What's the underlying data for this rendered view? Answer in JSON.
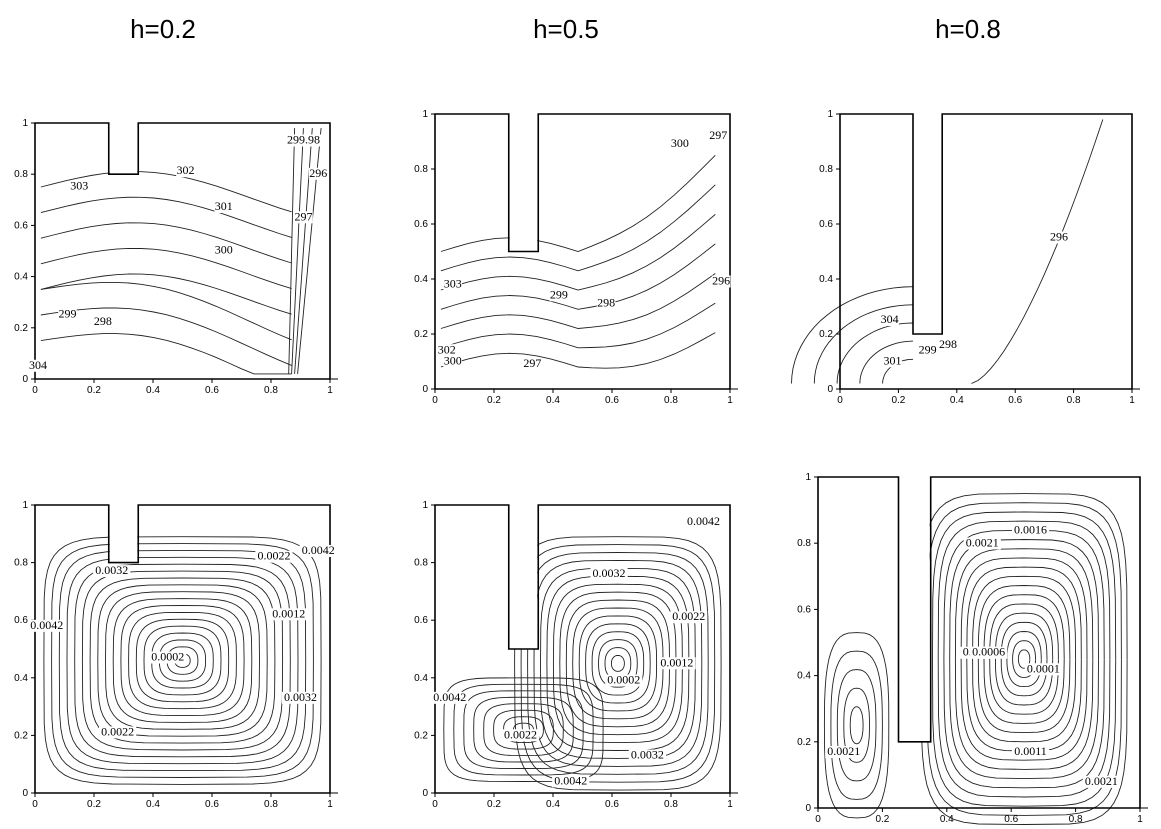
{
  "column_titles": [
    "h=0.2",
    "h=0.5",
    "h=0.8"
  ],
  "chart_data": [
    {
      "type": "contour",
      "row": "top",
      "h": 0.2,
      "xlim": [
        0,
        1
      ],
      "ylim": [
        0,
        1
      ],
      "xticks": [
        "0",
        "0.2",
        "0.4",
        "0.6",
        "0.8",
        "1"
      ],
      "yticks": [
        "0",
        "0.2",
        "0.4",
        "0.6",
        "0.8",
        "1"
      ],
      "contour_labels": [
        {
          "text": "303",
          "x": 0.15,
          "y": 0.74
        },
        {
          "text": "302",
          "x": 0.51,
          "y": 0.8
        },
        {
          "text": "301",
          "x": 0.64,
          "y": 0.66
        },
        {
          "text": "300",
          "x": 0.64,
          "y": 0.49
        },
        {
          "text": "299",
          "x": 0.11,
          "y": 0.24
        },
        {
          "text": "298",
          "x": 0.23,
          "y": 0.21
        },
        {
          "text": "297",
          "x": 0.91,
          "y": 0.62
        },
        {
          "text": "296",
          "x": 0.96,
          "y": 0.79
        },
        {
          "text": "299.98",
          "x": 0.91,
          "y": 0.92
        },
        {
          "text": "304",
          "x": 0.01,
          "y": 0.04
        }
      ]
    },
    {
      "type": "contour",
      "row": "top",
      "h": 0.5,
      "xlim": [
        0,
        1
      ],
      "ylim": [
        0,
        1
      ],
      "xticks": [
        "0",
        "0.2",
        "0.4",
        "0.6",
        "0.8",
        "1"
      ],
      "yticks": [
        "0",
        "0.2",
        "0.4",
        "0.6",
        "0.8",
        "1"
      ],
      "contour_labels": [
        {
          "text": "303",
          "x": 0.06,
          "y": 0.37
        },
        {
          "text": "302",
          "x": 0.04,
          "y": 0.13
        },
        {
          "text": "300",
          "x": 0.06,
          "y": 0.09
        },
        {
          "text": "299",
          "x": 0.42,
          "y": 0.33
        },
        {
          "text": "298",
          "x": 0.58,
          "y": 0.3
        },
        {
          "text": "297",
          "x": 0.33,
          "y": 0.08
        },
        {
          "text": "296",
          "x": 0.97,
          "y": 0.38
        },
        {
          "text": "300",
          "x": 0.83,
          "y": 0.88
        },
        {
          "text": "297",
          "x": 0.96,
          "y": 0.91
        }
      ]
    },
    {
      "type": "contour",
      "row": "top",
      "h": 0.8,
      "xlim": [
        0,
        1
      ],
      "ylim": [
        0,
        1
      ],
      "xticks": [
        "0",
        "0.2",
        "0.4",
        "0.6",
        "0.8",
        "1"
      ],
      "yticks": [
        "0",
        "0.2",
        "0.4",
        "0.6",
        "0.8",
        "1"
      ],
      "contour_labels": [
        {
          "text": "304",
          "x": 0.17,
          "y": 0.24
        },
        {
          "text": "301",
          "x": 0.18,
          "y": 0.09
        },
        {
          "text": "299",
          "x": 0.3,
          "y": 0.13
        },
        {
          "text": "298",
          "x": 0.37,
          "y": 0.15
        },
        {
          "text": "296",
          "x": 0.75,
          "y": 0.54
        }
      ]
    },
    {
      "type": "contour",
      "row": "bottom",
      "h": 0.2,
      "xlim": [
        0,
        1
      ],
      "ylim": [
        0,
        1
      ],
      "xticks": [
        "0",
        "0.2",
        "0.4",
        "0.6",
        "0.8",
        "1"
      ],
      "yticks": [
        "0",
        "0.2",
        "0.4",
        "0.6",
        "0.8",
        "1"
      ],
      "contour_labels": [
        {
          "text": "0.0032",
          "x": 0.26,
          "y": 0.76
        },
        {
          "text": "0.0042",
          "x": 0.04,
          "y": 0.57
        },
        {
          "text": "0.0002",
          "x": 0.45,
          "y": 0.46
        },
        {
          "text": "0.0022",
          "x": 0.28,
          "y": 0.2
        },
        {
          "text": "0.0022",
          "x": 0.81,
          "y": 0.81
        },
        {
          "text": "0.0012",
          "x": 0.86,
          "y": 0.61
        },
        {
          "text": "0.0042",
          "x": 0.96,
          "y": 0.83
        },
        {
          "text": "0.0032",
          "x": 0.9,
          "y": 0.32
        }
      ]
    },
    {
      "type": "contour",
      "row": "bottom",
      "h": 0.5,
      "xlim": [
        0,
        1
      ],
      "ylim": [
        0,
        1
      ],
      "xticks": [
        "0",
        "0.2",
        "0.4",
        "0.6",
        "0.8",
        "1"
      ],
      "yticks": [
        "0",
        "0.2",
        "0.4",
        "0.6",
        "0.8",
        "1"
      ],
      "contour_labels": [
        {
          "text": "0.0032",
          "x": 0.59,
          "y": 0.75
        },
        {
          "text": "0.0042",
          "x": 0.91,
          "y": 0.93
        },
        {
          "text": "0.0022",
          "x": 0.86,
          "y": 0.6
        },
        {
          "text": "0.0012",
          "x": 0.82,
          "y": 0.44
        },
        {
          "text": "0.0002",
          "x": 0.64,
          "y": 0.38
        },
        {
          "text": "0.0042",
          "x": 0.05,
          "y": 0.32
        },
        {
          "text": "0.0022",
          "x": 0.29,
          "y": 0.19
        },
        {
          "text": "0.0032",
          "x": 0.72,
          "y": 0.12
        },
        {
          "text": "0.0042",
          "x": 0.46,
          "y": 0.03
        }
      ]
    },
    {
      "type": "contour",
      "row": "bottom",
      "h": 0.8,
      "xlim": [
        0,
        1
      ],
      "ylim": [
        0,
        1
      ],
      "xticks": [
        "0",
        "0.2",
        "0.4",
        "0.6",
        "0.8",
        "1"
      ],
      "yticks": [
        "0",
        "0.2",
        "0.4",
        "0.6",
        "0.8",
        "1"
      ],
      "contour_labels": [
        {
          "text": "0.0021",
          "x": 0.51,
          "y": 0.79
        },
        {
          "text": "0.0016",
          "x": 0.66,
          "y": 0.83
        },
        {
          "text": "0.0011",
          "x": 0.5,
          "y": 0.46
        },
        {
          "text": "0.0006",
          "x": 0.53,
          "y": 0.46
        },
        {
          "text": "0.0001",
          "x": 0.7,
          "y": 0.41
        },
        {
          "text": "0.0021",
          "x": 0.08,
          "y": 0.16
        },
        {
          "text": "0.0011",
          "x": 0.66,
          "y": 0.16
        },
        {
          "text": "0.0021",
          "x": 0.88,
          "y": 0.07
        }
      ]
    }
  ]
}
